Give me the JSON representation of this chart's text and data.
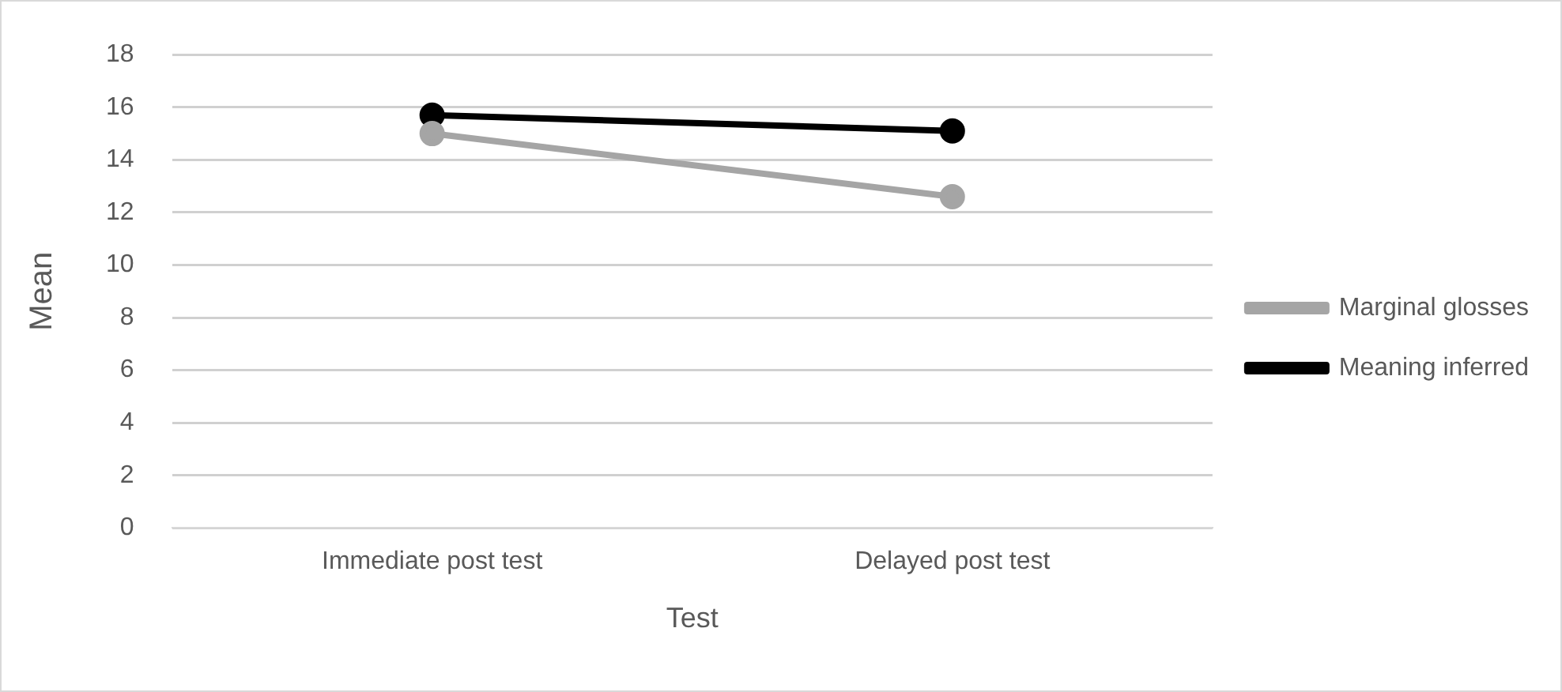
{
  "chart_data": {
    "type": "line",
    "xlabel": "Test",
    "ylabel": "Mean",
    "categories": [
      "Immediate post test",
      "Delayed post test"
    ],
    "series": [
      {
        "name": "Marginal glosses",
        "color": "#a5a5a5",
        "values": [
          15.0,
          12.6
        ]
      },
      {
        "name": "Meaning inferred",
        "color": "#000000",
        "values": [
          15.7,
          15.1
        ]
      }
    ],
    "ylim": [
      0,
      18
    ],
    "yticks": [
      0,
      2,
      4,
      6,
      8,
      10,
      12,
      14,
      16,
      18
    ],
    "grid": "y",
    "legend": "right",
    "marker": "circle",
    "line_style": "solid"
  }
}
